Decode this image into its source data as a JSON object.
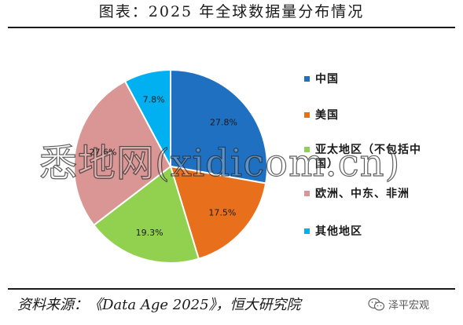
{
  "title": "图表：2025 年全球数据量分布情况",
  "chart_data": {
    "type": "pie",
    "title": "图表：2025 年全球数据量分布情况",
    "unit": "%",
    "categories": [
      "中国",
      "美国",
      "亚太地区（不包括中国）",
      "欧洲、中东、非洲",
      "其他地区"
    ],
    "values": [
      27.8,
      17.5,
      19.3,
      27.6,
      7.8
    ],
    "data_labels": [
      "27.8%",
      "17.5%",
      "19.3%",
      "27.6%",
      "7.8%"
    ],
    "colors": [
      "#1f70c1",
      "#e8701c",
      "#92d050",
      "#d99694",
      "#00b0f0"
    ],
    "start_angle_deg": 0,
    "direction": "clockwise",
    "legend": "right"
  },
  "legend_labels": [
    "中国",
    "美国",
    "亚太地区（不包括中国）",
    "欧洲、中东、非洲",
    "其他地区"
  ],
  "watermark": "悉地网(xidicom.cn)",
  "source": "资料来源：《Data Age 2025》，恒大研究院",
  "account": "泽平宏观",
  "account_icon": "wechat-icon"
}
